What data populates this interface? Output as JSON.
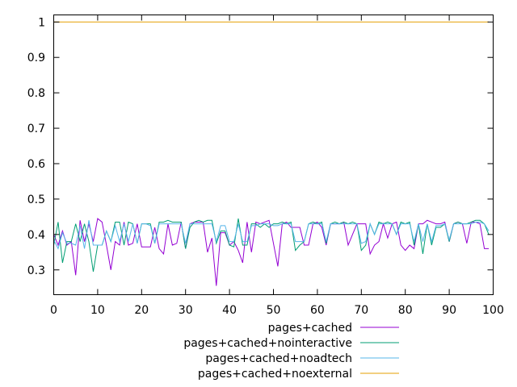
{
  "chart_data": {
    "type": "line",
    "title": "",
    "xlabel": "",
    "ylabel": "",
    "xlim": [
      0,
      100
    ],
    "ylim": [
      0.23,
      1.02
    ],
    "x_ticks": [
      0,
      10,
      20,
      30,
      40,
      50,
      60,
      70,
      80,
      90,
      100
    ],
    "y_ticks": [
      0.3,
      0.4,
      0.5,
      0.6,
      0.7,
      0.8,
      0.9,
      1
    ],
    "x_tick_labels": [
      "0",
      "10",
      "20",
      "30",
      "40",
      "50",
      "60",
      "70",
      "80",
      "90",
      "100"
    ],
    "y_tick_labels": [
      "0.3",
      "0.4",
      "0.5",
      "0.6",
      "0.7",
      "0.8",
      "0.9",
      "1"
    ],
    "grid": false,
    "legend_position": "bottom-center, below plot",
    "x": [
      0,
      1,
      2,
      3,
      4,
      5,
      6,
      7,
      8,
      9,
      10,
      11,
      12,
      13,
      14,
      15,
      16,
      17,
      18,
      19,
      20,
      21,
      22,
      23,
      24,
      25,
      26,
      27,
      28,
      29,
      30,
      31,
      32,
      33,
      34,
      35,
      36,
      37,
      38,
      39,
      40,
      41,
      42,
      43,
      44,
      45,
      46,
      47,
      48,
      49,
      50,
      51,
      52,
      53,
      54,
      55,
      56,
      57,
      58,
      59,
      60,
      61,
      62,
      63,
      64,
      65,
      66,
      67,
      68,
      69,
      70,
      71,
      72,
      73,
      74,
      75,
      76,
      77,
      78,
      79,
      80,
      81,
      82,
      83,
      84,
      85,
      86,
      87,
      88,
      89,
      90,
      91,
      92,
      93,
      94,
      95,
      96,
      97,
      98,
      99
    ],
    "series": [
      {
        "name": "pages+cached",
        "color": "#9400d3",
        "values": [
          0.4,
          0.37,
          0.41,
          0.37,
          0.38,
          0.285,
          0.44,
          0.38,
          0.43,
          0.38,
          0.445,
          0.435,
          0.37,
          0.3,
          0.38,
          0.37,
          0.435,
          0.37,
          0.375,
          0.43,
          0.365,
          0.365,
          0.365,
          0.42,
          0.36,
          0.345,
          0.43,
          0.37,
          0.375,
          0.435,
          0.36,
          0.43,
          0.435,
          0.435,
          0.435,
          0.35,
          0.39,
          0.255,
          0.405,
          0.405,
          0.37,
          0.38,
          0.355,
          0.32,
          0.435,
          0.35,
          0.435,
          0.43,
          0.435,
          0.44,
          0.375,
          0.31,
          0.43,
          0.435,
          0.42,
          0.42,
          0.42,
          0.37,
          0.37,
          0.43,
          0.435,
          0.42,
          0.37,
          0.43,
          0.43,
          0.43,
          0.435,
          0.37,
          0.4,
          0.43,
          0.43,
          0.43,
          0.345,
          0.37,
          0.38,
          0.43,
          0.39,
          0.43,
          0.435,
          0.37,
          0.355,
          0.37,
          0.36,
          0.43,
          0.43,
          0.44,
          0.435,
          0.43,
          0.43,
          0.435,
          0.38,
          0.43,
          0.435,
          0.43,
          0.375,
          0.435,
          0.435,
          0.43,
          0.36,
          0.36
        ]
      },
      {
        "name": "pages+cached+nointeractive",
        "color": "#009e73",
        "values": [
          0.37,
          0.435,
          0.32,
          0.38,
          0.38,
          0.43,
          0.38,
          0.43,
          0.38,
          0.295,
          0.37,
          0.37,
          0.41,
          0.38,
          0.435,
          0.435,
          0.37,
          0.435,
          0.43,
          0.375,
          0.43,
          0.43,
          0.43,
          0.375,
          0.435,
          0.435,
          0.44,
          0.435,
          0.435,
          0.435,
          0.36,
          0.42,
          0.435,
          0.44,
          0.435,
          0.44,
          0.44,
          0.375,
          0.41,
          0.41,
          0.37,
          0.365,
          0.445,
          0.37,
          0.37,
          0.43,
          0.43,
          0.42,
          0.43,
          0.42,
          0.43,
          0.43,
          0.435,
          0.43,
          0.435,
          0.355,
          0.37,
          0.38,
          0.43,
          0.435,
          0.43,
          0.435,
          0.375,
          0.43,
          0.435,
          0.43,
          0.435,
          0.43,
          0.435,
          0.43,
          0.355,
          0.37,
          0.43,
          0.4,
          0.435,
          0.43,
          0.435,
          0.43,
          0.4,
          0.435,
          0.43,
          0.435,
          0.37,
          0.43,
          0.345,
          0.43,
          0.37,
          0.42,
          0.42,
          0.43,
          0.38,
          0.43,
          0.435,
          0.43,
          0.43,
          0.435,
          0.44,
          0.44,
          0.43,
          0.4
        ]
      },
      {
        "name": "pages+cached+noadtech",
        "color": "#56b4e9",
        "values": [
          0.385,
          0.36,
          0.405,
          0.375,
          0.375,
          0.37,
          0.425,
          0.36,
          0.44,
          0.37,
          0.37,
          0.37,
          0.41,
          0.38,
          0.425,
          0.38,
          0.43,
          0.38,
          0.43,
          0.375,
          0.43,
          0.43,
          0.425,
          0.375,
          0.43,
          0.43,
          0.43,
          0.43,
          0.43,
          0.43,
          0.375,
          0.43,
          0.43,
          0.43,
          0.43,
          0.43,
          0.43,
          0.38,
          0.425,
          0.425,
          0.38,
          0.38,
          0.43,
          0.38,
          0.38,
          0.425,
          0.425,
          0.43,
          0.43,
          0.43,
          0.425,
          0.425,
          0.43,
          0.43,
          0.43,
          0.38,
          0.38,
          0.38,
          0.43,
          0.43,
          0.43,
          0.43,
          0.38,
          0.43,
          0.43,
          0.43,
          0.43,
          0.43,
          0.43,
          0.43,
          0.375,
          0.38,
          0.43,
          0.4,
          0.43,
          0.43,
          0.43,
          0.43,
          0.4,
          0.43,
          0.43,
          0.43,
          0.38,
          0.43,
          0.38,
          0.43,
          0.38,
          0.425,
          0.425,
          0.43,
          0.385,
          0.43,
          0.43,
          0.43,
          0.43,
          0.43,
          0.435,
          0.435,
          0.43,
          0.41
        ]
      },
      {
        "name": "pages+cached+noexternal",
        "color": "#e69f00",
        "values": [
          1,
          1,
          1,
          1,
          1,
          1,
          1,
          1,
          1,
          1,
          1,
          1,
          1,
          1,
          1,
          1,
          1,
          1,
          1,
          1,
          1,
          1,
          1,
          1,
          1,
          1,
          1,
          1,
          1,
          1,
          1,
          1,
          1,
          1,
          1,
          1,
          1,
          1,
          1,
          1,
          1,
          1,
          1,
          1,
          1,
          1,
          1,
          1,
          1,
          1,
          1,
          1,
          1,
          1,
          1,
          1,
          1,
          1,
          1,
          1,
          1,
          1,
          1,
          1,
          1,
          1,
          1,
          1,
          1,
          1,
          1,
          1,
          1,
          1,
          1,
          1,
          1,
          1,
          1,
          1,
          1,
          1,
          1,
          1,
          1,
          1,
          1,
          1,
          1,
          1,
          1,
          1,
          1,
          1,
          1,
          1,
          1,
          1,
          1,
          1
        ]
      }
    ]
  }
}
